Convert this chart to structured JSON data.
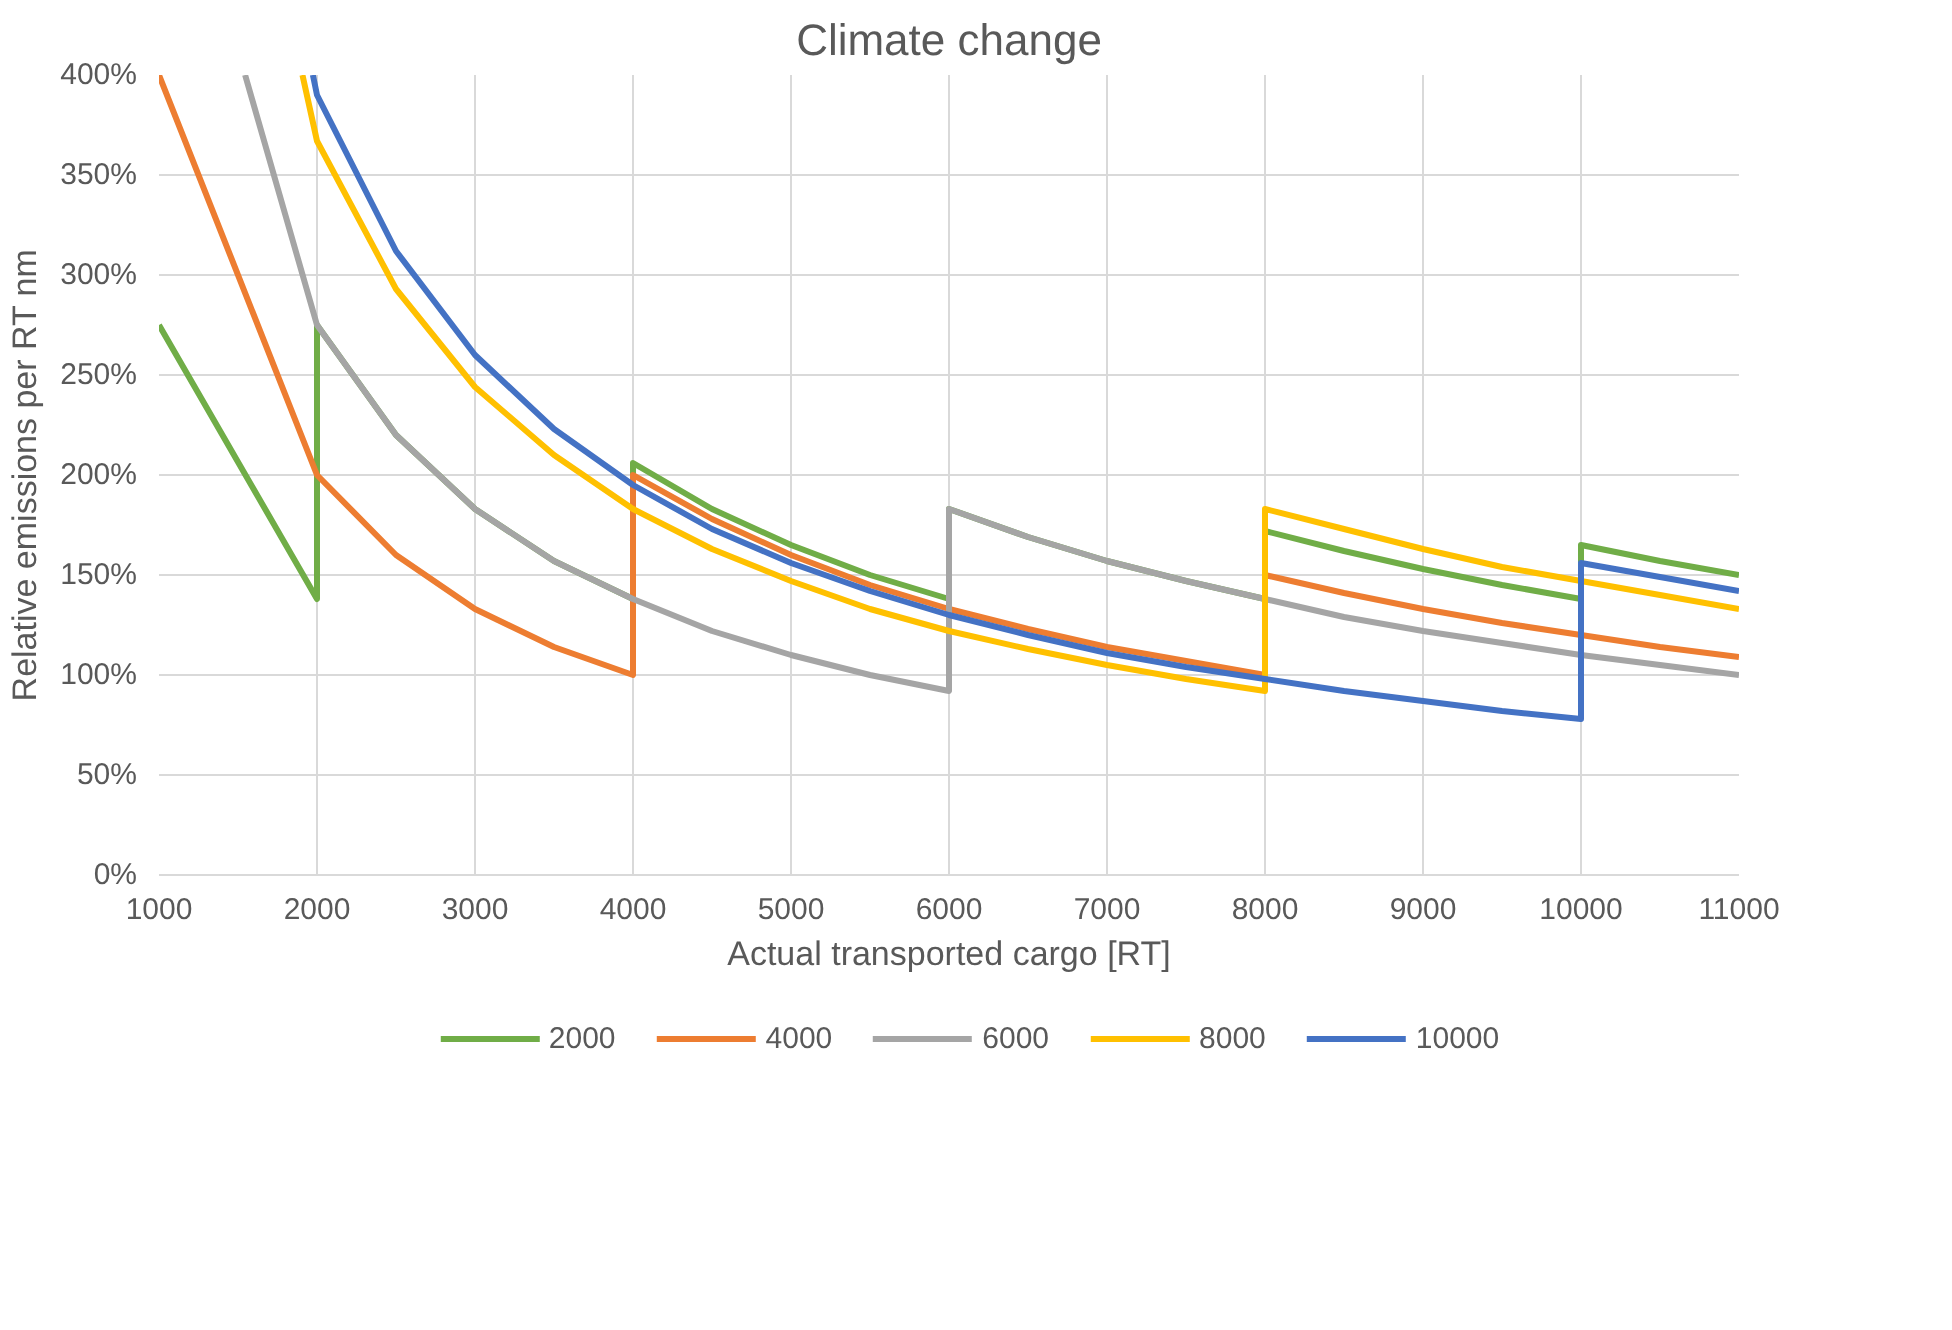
{
  "chart_data": {
    "type": "line",
    "title": "Climate change",
    "xlabel": "Actual transported cargo [RT]",
    "ylabel": "Relative emissions per RT nm",
    "xlim": [
      1000,
      11000
    ],
    "xticks": [
      1000,
      2000,
      3000,
      4000,
      5000,
      6000,
      7000,
      8000,
      9000,
      10000,
      11000
    ],
    "ylim": [
      0,
      400
    ],
    "yticks": [
      {
        "value": 0,
        "label": "0%"
      },
      {
        "value": 50,
        "label": "50%"
      },
      {
        "value": 100,
        "label": "100%"
      },
      {
        "value": 150,
        "label": "150%"
      },
      {
        "value": 200,
        "label": "200%"
      },
      {
        "value": 250,
        "label": "250%"
      },
      {
        "value": 300,
        "label": "300%"
      },
      {
        "value": 350,
        "label": "350%"
      },
      {
        "value": 400,
        "label": "400%"
      }
    ],
    "grid": true,
    "legend": "bottom",
    "marker": "none",
    "line_style": "solid",
    "series": [
      {
        "name": "2000",
        "color": "#70ad47",
        "x": [
          1000,
          2000,
          2000,
          2500,
          3000,
          3500,
          4000,
          4000,
          4500,
          5000,
          5500,
          6000,
          6000,
          6500,
          7000,
          7500,
          8000,
          8000,
          8500,
          9000,
          9500,
          10000,
          10000,
          10500,
          11000
        ],
        "values": [
          275,
          138,
          275,
          220,
          183,
          157,
          138,
          206,
          183,
          165,
          150,
          138,
          183,
          169,
          157,
          147,
          138,
          172,
          162,
          153,
          145,
          138,
          165,
          157,
          150
        ]
      },
      {
        "name": "4000",
        "color": "#ed7d31",
        "x": [
          1000,
          2000,
          2500,
          3000,
          3500,
          4000,
          4000,
          4500,
          5000,
          5500,
          6000,
          6500,
          7000,
          7500,
          8000,
          8000,
          8500,
          9000,
          9500,
          10000,
          10500,
          11000
        ],
        "values": [
          400,
          200,
          160,
          133,
          114,
          100,
          200,
          178,
          160,
          145,
          133,
          123,
          114,
          107,
          100,
          150,
          141,
          133,
          126,
          120,
          114,
          109
        ]
      },
      {
        "name": "6000",
        "color": "#a5a5a5",
        "x": [
          1545,
          2000,
          2500,
          3000,
          3500,
          4000,
          4500,
          5000,
          5500,
          6000,
          6000,
          6500,
          7000,
          7500,
          8000,
          8500,
          9000,
          9500,
          10000,
          10500,
          11000
        ],
        "values": [
          400,
          275,
          220,
          183,
          157,
          138,
          122,
          110,
          100,
          92,
          183,
          169,
          157,
          147,
          138,
          129,
          122,
          116,
          110,
          105,
          100
        ]
      },
      {
        "name": "8000",
        "color": "#ffc000",
        "x": [
          1908,
          2000,
          2500,
          3000,
          3500,
          4000,
          4500,
          5000,
          5500,
          6000,
          6500,
          7000,
          7500,
          8000,
          8000,
          8500,
          9000,
          9500,
          10000,
          10500,
          11000
        ],
        "values": [
          400,
          367,
          293,
          244,
          210,
          183,
          163,
          147,
          133,
          122,
          113,
          105,
          98,
          92,
          183,
          173,
          163,
          154,
          147,
          140,
          133
        ]
      },
      {
        "name": "10000",
        "color": "#4472c4",
        "x": [
          1974,
          2000,
          2500,
          3000,
          3500,
          4000,
          4500,
          5000,
          5500,
          6000,
          6500,
          7000,
          7500,
          8000,
          8500,
          9000,
          9500,
          10000,
          10000,
          10500,
          11000
        ],
        "values": [
          400,
          390,
          312,
          260,
          223,
          195,
          173,
          156,
          142,
          130,
          120,
          111,
          104,
          98,
          92,
          87,
          82,
          78,
          156,
          149,
          142
        ]
      }
    ]
  }
}
